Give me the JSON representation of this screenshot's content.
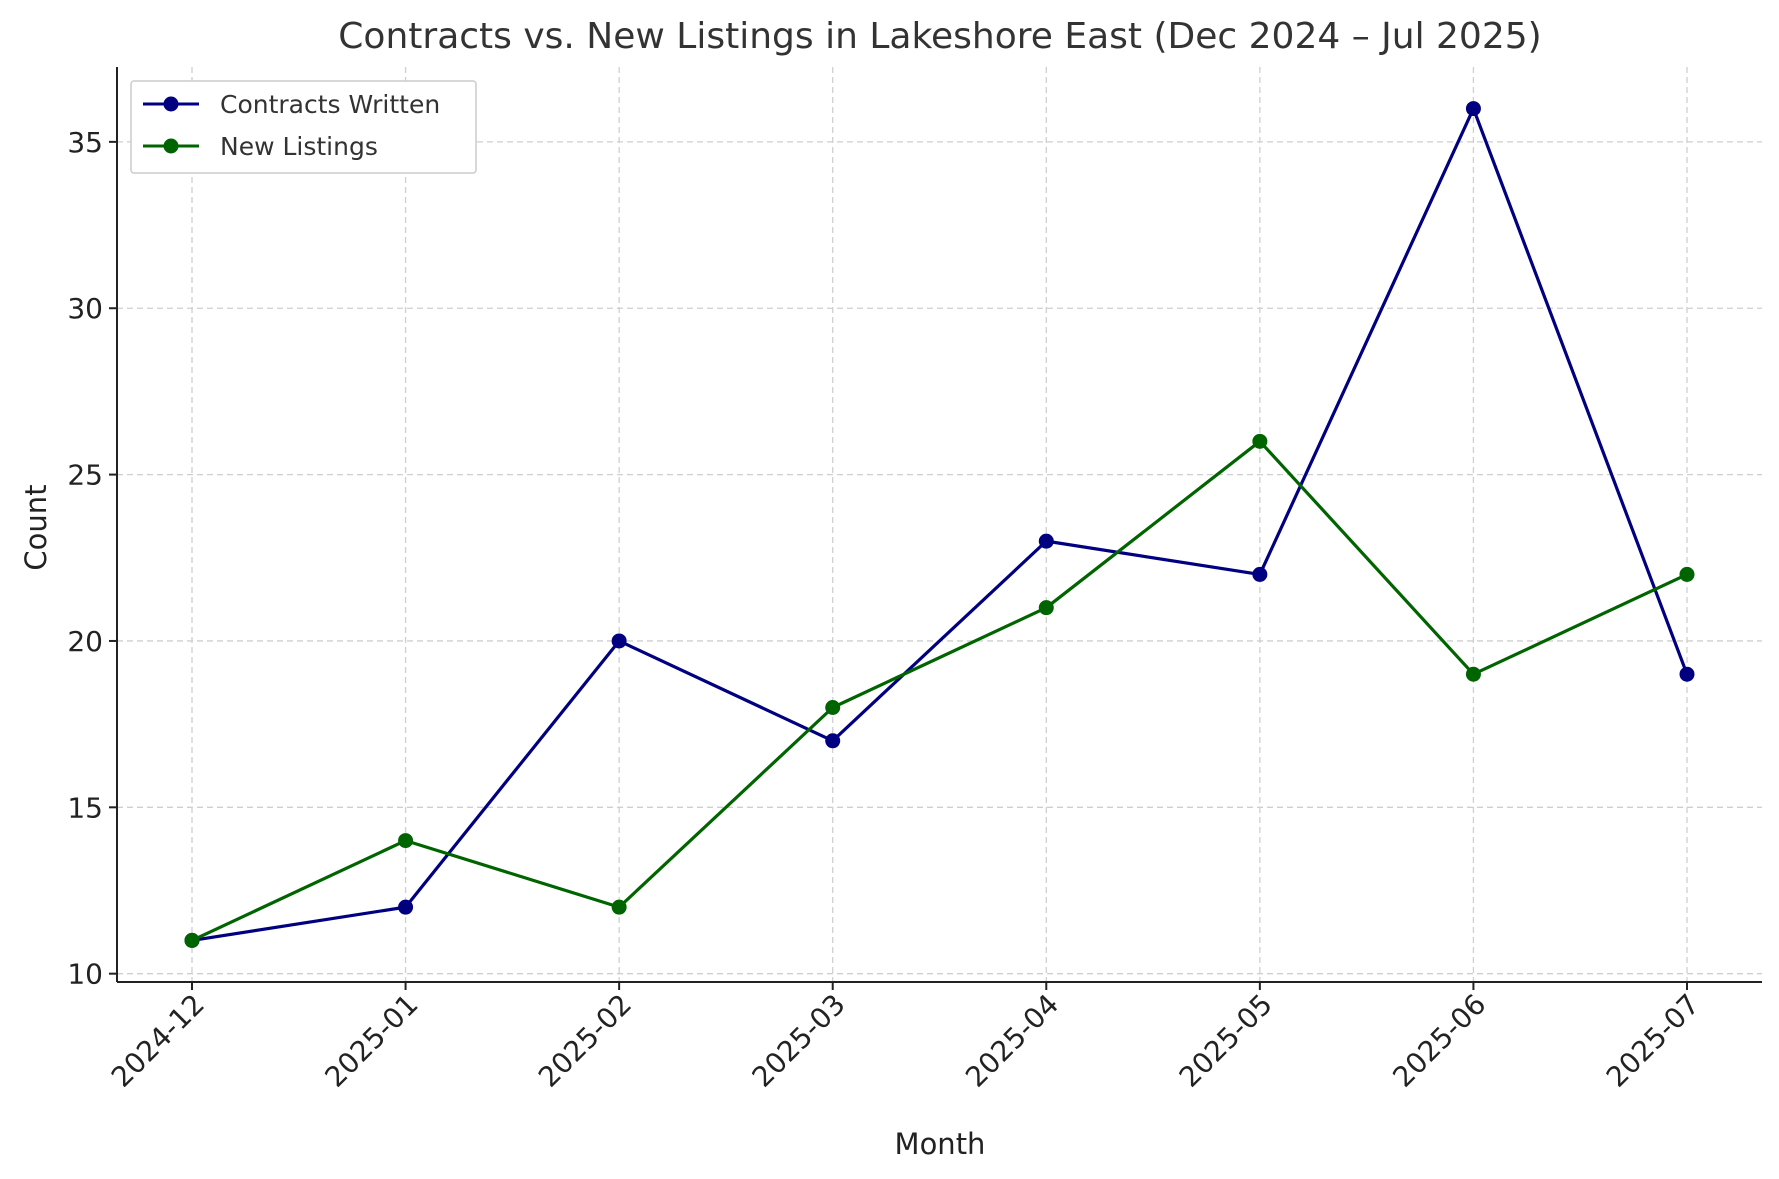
{
  "chart_data": {
    "type": "line",
    "title": "Contracts vs. New Listings in Lakeshore East (Dec 2024 – Jul 2025)",
    "xlabel": "Month",
    "ylabel": "Count",
    "categories": [
      "2024-12",
      "2025-01",
      "2025-02",
      "2025-03",
      "2025-04",
      "2025-05",
      "2025-06",
      "2025-07"
    ],
    "series": [
      {
        "name": "Contracts Written",
        "color": "#000080",
        "values": [
          11,
          12,
          20,
          17,
          23,
          22,
          36,
          19
        ]
      },
      {
        "name": "New Listings",
        "color": "#006400",
        "values": [
          11,
          14,
          12,
          18,
          21,
          26,
          19,
          22
        ]
      }
    ],
    "ylim": [
      9.75,
      37.25
    ],
    "yticks": [
      10,
      15,
      20,
      25,
      30,
      35
    ],
    "grid": true,
    "legend": "upper-left"
  }
}
